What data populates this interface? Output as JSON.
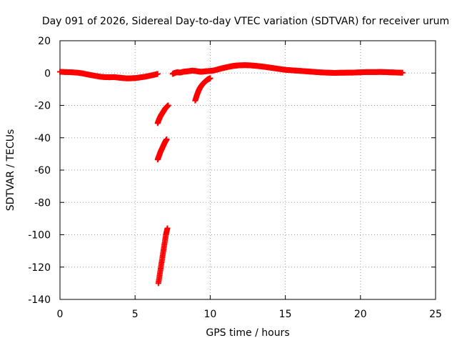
{
  "chart_data": {
    "type": "scatter",
    "title": "Day 091 of 2026, Sidereal Day-to-day VTEC variation (SDTVAR) for receiver urum",
    "xlabel": "GPS time / hours",
    "ylabel": "SDTVAR / TECUs",
    "xlim": [
      0,
      25
    ],
    "ylim": [
      -140,
      20
    ],
    "xticks": [
      0,
      5,
      10,
      15,
      20,
      25
    ],
    "yticks": [
      20,
      0,
      -20,
      -40,
      -60,
      -80,
      -100,
      -120,
      -140
    ],
    "grid": true,
    "marker": "plus",
    "series": [
      {
        "name": "SDTVAR",
        "color": "#ff0000",
        "segments": [
          [
            [
              0.0,
              0.8
            ],
            [
              0.4,
              0.6
            ],
            [
              0.8,
              0.5
            ],
            [
              1.2,
              0.2
            ],
            [
              1.5,
              -0.2
            ],
            [
              1.8,
              -0.8
            ],
            [
              2.1,
              -1.3
            ],
            [
              2.4,
              -1.8
            ],
            [
              2.7,
              -2.3
            ],
            [
              3.0,
              -2.5
            ],
            [
              3.3,
              -2.6
            ],
            [
              3.6,
              -2.5
            ],
            [
              3.9,
              -2.8
            ],
            [
              4.2,
              -3.1
            ],
            [
              4.5,
              -3.3
            ],
            [
              4.8,
              -3.2
            ],
            [
              5.1,
              -3.0
            ],
            [
              5.4,
              -2.6
            ],
            [
              5.7,
              -2.2
            ],
            [
              6.0,
              -1.6
            ],
            [
              6.3,
              -1.0
            ],
            [
              6.5,
              -0.5
            ]
          ],
          [
            [
              6.5,
              -31.0
            ],
            [
              6.6,
              -28.5
            ],
            [
              6.7,
              -26.5
            ],
            [
              6.8,
              -25.0
            ],
            [
              6.9,
              -23.5
            ],
            [
              7.0,
              -22.0
            ],
            [
              7.1,
              -21.0
            ],
            [
              7.2,
              -20.0
            ]
          ],
          [
            [
              6.5,
              -53.5
            ],
            [
              6.6,
              -51.0
            ],
            [
              6.7,
              -48.5
            ],
            [
              6.8,
              -46.5
            ],
            [
              6.9,
              -44.5
            ],
            [
              7.0,
              -42.5
            ],
            [
              7.1,
              -41.0
            ]
          ],
          [
            [
              6.55,
              -130.0
            ],
            [
              6.65,
              -124.0
            ],
            [
              6.75,
              -118.0
            ],
            [
              6.85,
              -112.0
            ],
            [
              6.95,
              -106.0
            ],
            [
              7.05,
              -100.0
            ],
            [
              7.15,
              -96.0
            ]
          ],
          [
            [
              7.5,
              -0.5
            ],
            [
              7.6,
              0.0
            ],
            [
              7.8,
              0.5
            ],
            [
              8.0,
              0.3
            ],
            [
              8.2,
              0.8
            ],
            [
              8.4,
              1.0
            ],
            [
              8.6,
              1.2
            ],
            [
              8.8,
              1.5
            ],
            [
              9.0,
              1.3
            ],
            [
              9.2,
              1.0
            ],
            [
              9.4,
              0.8
            ],
            [
              9.6,
              1.0
            ],
            [
              9.8,
              1.2
            ],
            [
              10.0,
              1.3
            ],
            [
              10.2,
              1.5
            ],
            [
              10.4,
              2.0
            ],
            [
              10.6,
              2.5
            ],
            [
              10.8,
              3.0
            ],
            [
              11.0,
              3.4
            ],
            [
              11.2,
              3.8
            ],
            [
              11.4,
              4.2
            ],
            [
              11.6,
              4.5
            ],
            [
              11.8,
              4.7
            ],
            [
              12.0,
              4.8
            ],
            [
              12.3,
              4.9
            ],
            [
              12.6,
              4.8
            ],
            [
              12.9,
              4.6
            ],
            [
              13.2,
              4.3
            ],
            [
              13.5,
              4.0
            ],
            [
              13.8,
              3.6
            ],
            [
              14.1,
              3.2
            ],
            [
              14.4,
              2.8
            ],
            [
              14.7,
              2.4
            ],
            [
              15.0,
              2.0
            ],
            [
              15.3,
              1.8
            ],
            [
              15.6,
              1.6
            ],
            [
              15.9,
              1.4
            ],
            [
              16.2,
              1.2
            ],
            [
              16.5,
              1.0
            ],
            [
              16.8,
              0.8
            ],
            [
              17.1,
              0.6
            ],
            [
              17.4,
              0.4
            ],
            [
              17.7,
              0.3
            ],
            [
              18.0,
              0.2
            ],
            [
              18.3,
              0.1
            ],
            [
              18.6,
              0.2
            ],
            [
              18.9,
              0.2
            ],
            [
              19.2,
              0.3
            ],
            [
              19.5,
              0.3
            ],
            [
              19.8,
              0.4
            ],
            [
              20.1,
              0.5
            ],
            [
              20.4,
              0.6
            ],
            [
              20.7,
              0.6
            ],
            [
              21.0,
              0.6
            ],
            [
              21.3,
              0.7
            ],
            [
              21.6,
              0.6
            ],
            [
              21.9,
              0.5
            ],
            [
              22.2,
              0.4
            ],
            [
              22.5,
              0.3
            ],
            [
              22.8,
              0.2
            ]
          ],
          [
            [
              9.0,
              -17.0
            ],
            [
              9.1,
              -14.0
            ],
            [
              9.2,
              -11.5
            ],
            [
              9.3,
              -9.5
            ],
            [
              9.4,
              -8.0
            ],
            [
              9.5,
              -6.8
            ],
            [
              9.6,
              -5.8
            ],
            [
              9.7,
              -5.0
            ],
            [
              9.8,
              -4.2
            ],
            [
              9.9,
              -3.6
            ],
            [
              10.0,
              -3.2
            ]
          ]
        ]
      }
    ]
  }
}
